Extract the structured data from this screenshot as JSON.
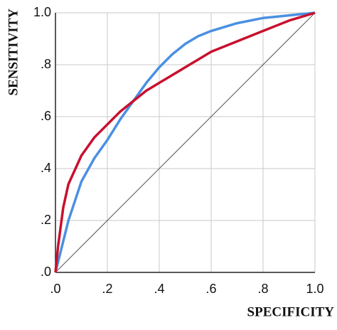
{
  "chart_data": {
    "type": "line",
    "x_label": "SPECIFICITY",
    "y_label": "SENSITIVITY",
    "xlim": [
      0,
      1
    ],
    "ylim": [
      0,
      1
    ],
    "xticks": [
      {
        "value": 0,
        "label": ".0"
      },
      {
        "value": 0.2,
        "label": ".2"
      },
      {
        "value": 0.4,
        "label": ".4"
      },
      {
        "value": 0.6,
        "label": ".6"
      },
      {
        "value": 0.8,
        "label": ".8"
      },
      {
        "value": 1,
        "label": "1.0"
      }
    ],
    "yticks": [
      {
        "value": 0,
        "label": ".0"
      },
      {
        "value": 0.2,
        "label": ".2"
      },
      {
        "value": 0.4,
        "label": ".4"
      },
      {
        "value": 0.6,
        "label": ".6"
      },
      {
        "value": 0.8,
        "label": ".8"
      },
      {
        "value": 1,
        "label": "1.0"
      }
    ],
    "grid": true,
    "series": [
      {
        "color": "#4a90e2",
        "x": [
          0,
          0.02,
          0.05,
          0.1,
          0.15,
          0.2,
          0.25,
          0.3,
          0.35,
          0.4,
          0.45,
          0.5,
          0.55,
          0.6,
          0.7,
          0.8,
          0.9,
          1
        ],
        "values": [
          0,
          0.08,
          0.2,
          0.35,
          0.44,
          0.51,
          0.59,
          0.66,
          0.73,
          0.79,
          0.84,
          0.88,
          0.91,
          0.93,
          0.96,
          0.98,
          0.99,
          1
        ]
      },
      {
        "color": "#c8102e",
        "x": [
          0,
          0.01,
          0.03,
          0.05,
          0.1,
          0.15,
          0.2,
          0.25,
          0.3,
          0.35,
          0.4,
          0.45,
          0.5,
          0.55,
          0.6,
          0.7,
          0.8,
          0.9,
          1
        ],
        "values": [
          0,
          0.1,
          0.25,
          0.34,
          0.45,
          0.52,
          0.57,
          0.62,
          0.66,
          0.7,
          0.73,
          0.76,
          0.79,
          0.82,
          0.85,
          0.89,
          0.93,
          0.97,
          1
        ]
      },
      {
        "color": "#555555",
        "x": [
          0,
          1
        ],
        "values": [
          0,
          1
        ]
      }
    ]
  }
}
